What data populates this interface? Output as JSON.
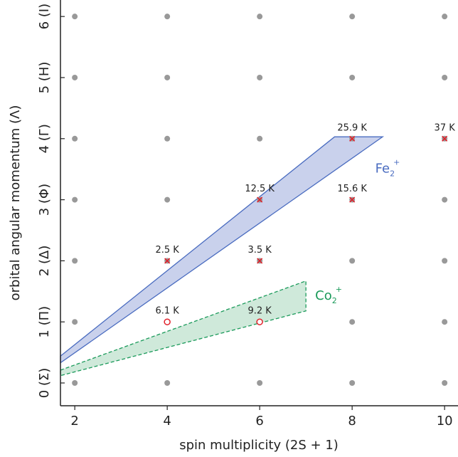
{
  "chart_data": {
    "type": "scatter",
    "xlabel": "spin multiplicity (2S + 1)",
    "ylabel": "orbital angular momentum (Λ)",
    "xlim": [
      1.69,
      10.29
    ],
    "ylim": [
      -0.373,
      6.27
    ],
    "xticks": [
      2,
      4,
      6,
      8,
      10
    ],
    "yticks": [
      {
        "value": 0,
        "label": "0 (Σ)"
      },
      {
        "value": 1,
        "label": "1 (Π)"
      },
      {
        "value": 2,
        "label": "2 (Δ)"
      },
      {
        "value": 3,
        "label": "3 (Φ)"
      },
      {
        "value": 4,
        "label": "4 (Γ)"
      },
      {
        "value": 5,
        "label": "5 (H)"
      },
      {
        "value": 6,
        "label": "6 (I)"
      }
    ],
    "lattice": true,
    "lattice_color": "#999999",
    "series": [
      {
        "marker": "x",
        "color": "#e0202a",
        "x": [
          4,
          6,
          6,
          8,
          8,
          10
        ],
        "values": [
          2,
          2,
          3,
          3,
          4,
          4
        ],
        "labels": [
          "2.5 K",
          "3.5 K",
          "12.5 K",
          "15.6 K",
          "25.9 K",
          "37 K"
        ]
      },
      {
        "marker": "o",
        "color": "#e0202a",
        "x": [
          4,
          6
        ],
        "values": [
          1,
          1
        ],
        "labels": [
          "6.1 K",
          "9.2 K"
        ]
      }
    ],
    "regions": [
      {
        "label": "Fe",
        "label_sub": "2",
        "label_sup": "+",
        "color": "#4a6cc0",
        "fill": "#c9d1ec",
        "dashed": false,
        "label_x": 8.5,
        "label_y": 3.5,
        "x": [
          1.69,
          7.62,
          8.66,
          1.69
        ],
        "y": [
          0.44,
          4.03,
          4.03,
          0.33
        ]
      },
      {
        "label": "Co",
        "label_sub": "2",
        "label_sup": "+",
        "color": "#1a9a5a",
        "fill": "#cfe9da",
        "dashed": true,
        "label_x": 7.2,
        "label_y": 1.42,
        "x": [
          1.69,
          7.0,
          7.0,
          1.69
        ],
        "y": [
          0.21,
          1.67,
          1.18,
          0.12
        ]
      }
    ]
  }
}
